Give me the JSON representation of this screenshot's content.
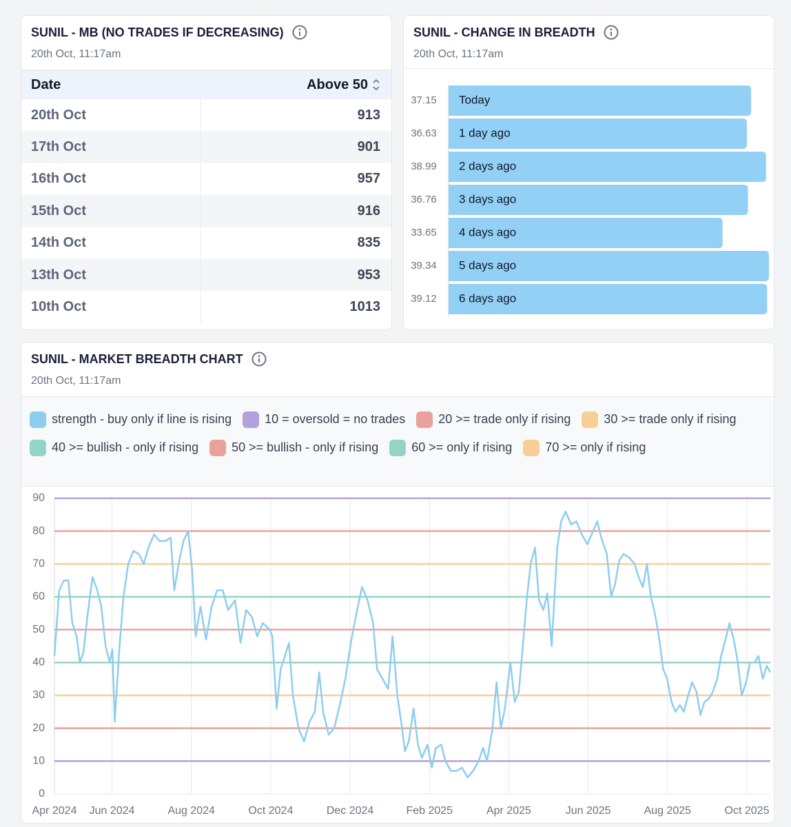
{
  "mb_table": {
    "title": "SUNIL - MB (NO TRADES IF DECREASING)",
    "timestamp": "20th Oct, 11:17am",
    "columns": [
      "Date",
      "Above 50"
    ],
    "rows": [
      [
        "20th Oct",
        913
      ],
      [
        "17th Oct",
        901
      ],
      [
        "16th Oct",
        957
      ],
      [
        "15th Oct",
        916
      ],
      [
        "14th Oct",
        835
      ],
      [
        "13th Oct",
        953
      ],
      [
        "10th Oct",
        1013
      ]
    ]
  },
  "chart_data": [
    {
      "type": "bar",
      "orientation": "horizontal",
      "title": "SUNIL - CHANGE IN BREADTH",
      "subtitle": "20th Oct, 11:17am",
      "categories": [
        "Today",
        "1 day ago",
        "2 days ago",
        "3 days ago",
        "4 days ago",
        "5 days ago",
        "6 days ago"
      ],
      "values": [
        37.15,
        36.63,
        38.99,
        36.76,
        33.65,
        39.34,
        39.12
      ],
      "color": "#93d0f6"
    },
    {
      "type": "line",
      "title": "SUNIL - MARKET BREADTH CHART",
      "subtitle": "20th Oct, 11:17am",
      "x": [
        0.55,
        0.67,
        0.79,
        0.9,
        1.0,
        1.11,
        1.19,
        1.28,
        1.39,
        1.51,
        1.63,
        1.73,
        1.84,
        1.94,
        2.01,
        2.07,
        2.19,
        2.29,
        2.41,
        2.54,
        2.68,
        2.8,
        2.92,
        3.06,
        3.2,
        3.34,
        3.48,
        3.57,
        3.68,
        3.8,
        3.92,
        4.02,
        4.11,
        4.23,
        4.37,
        4.51,
        4.65,
        4.79,
        4.93,
        5.1,
        5.24,
        5.38,
        5.52,
        5.66,
        5.8,
        5.98,
        6.04,
        6.15,
        6.25,
        6.36,
        6.46,
        6.56,
        6.7,
        6.84,
        6.98,
        7.11,
        7.22,
        7.32,
        7.46,
        7.6,
        7.74,
        7.88,
        8.02,
        8.16,
        8.3,
        8.44,
        8.58,
        8.68,
        8.82,
        8.96,
        9.07,
        9.19,
        9.31,
        9.38,
        9.48,
        9.6,
        9.71,
        9.81,
        9.95,
        10.06,
        10.16,
        10.3,
        10.4,
        10.54,
        10.68,
        10.82,
        10.96,
        11.1,
        11.24,
        11.35,
        11.45,
        11.59,
        11.69,
        11.8,
        11.9,
        12.04,
        12.15,
        12.25,
        12.36,
        12.46,
        12.55,
        12.66,
        12.76,
        12.87,
        12.97,
        13.08,
        13.15,
        13.22,
        13.32,
        13.43,
        13.57,
        13.7,
        13.84,
        13.98,
        14.12,
        14.23,
        14.33,
        14.47,
        14.58,
        14.68,
        14.78,
        14.89,
        15.03,
        15.17,
        15.27,
        15.38,
        15.48,
        15.58,
        15.68,
        15.78,
        15.89,
        15.99,
        16.1,
        16.2,
        16.31,
        16.41,
        16.52,
        16.62,
        16.73,
        16.83,
        16.93,
        17.04,
        17.14,
        17.25,
        17.35,
        17.46,
        17.56,
        17.67,
        17.77,
        17.87,
        17.98,
        18.08,
        18.19,
        18.29,
        18.4,
        18.5,
        18.59
      ],
      "series": [
        {
          "name": "strength - buy only if line is rising",
          "color": "#8dcdf0",
          "values": [
            42,
            62,
            65,
            65,
            52,
            48,
            40,
            43,
            55,
            66,
            62,
            57,
            45,
            40,
            44,
            22,
            45,
            60,
            70,
            74,
            73,
            70,
            75,
            79,
            77,
            77,
            78,
            62,
            70,
            77,
            80,
            68,
            48,
            57,
            47,
            57,
            62,
            62,
            56,
            59,
            46,
            56,
            54,
            48,
            52,
            50,
            48,
            26,
            38,
            42,
            46,
            30,
            20,
            16,
            22,
            25,
            37,
            25,
            18,
            20,
            27,
            35,
            46,
            55,
            63,
            59,
            52,
            38,
            35,
            32,
            48,
            30,
            20,
            13,
            16,
            26,
            15,
            11,
            15,
            8,
            14,
            15,
            10,
            7,
            7,
            8,
            5,
            7,
            10,
            14,
            10,
            20,
            34,
            20,
            26,
            40,
            28,
            31,
            46,
            60,
            70,
            75,
            59,
            56,
            61,
            45,
            60,
            75,
            83,
            86,
            82,
            83,
            79,
            76,
            80,
            83,
            78,
            73,
            60,
            64,
            71,
            73,
            72,
            70,
            66,
            63,
            70,
            60,
            55,
            48,
            38,
            35,
            28,
            25,
            27,
            25,
            30,
            34,
            31,
            24,
            28,
            29,
            31,
            35,
            42,
            47,
            52,
            47,
            40,
            30,
            34,
            40,
            40,
            42,
            35,
            39,
            37
          ]
        }
      ],
      "reference_lines": [
        {
          "name": "10 = oversold = no trades",
          "value": 10,
          "color": "#b3a0dc"
        },
        {
          "name": "20 >= trade only if rising",
          "value": 20,
          "color": "#e8a29b"
        },
        {
          "name": "30 >= trade only if rising",
          "value": 30,
          "color": "#f8d097"
        },
        {
          "name": "40 >= bullish - only if rising",
          "value": 40,
          "color": "#94d3c8"
        },
        {
          "name": "50 >= bullish - only if rising",
          "value": 50,
          "color": "#e8a29b"
        },
        {
          "name": "60 >= only if rising",
          "value": 60,
          "color": "#94d3c8"
        },
        {
          "name": "70 >= only if rising",
          "value": 70,
          "color": "#f8d097"
        },
        {
          "value": 80,
          "color": "#e8a29b"
        },
        {
          "value": 90,
          "color": "#b3a0dc"
        }
      ],
      "xlim": [
        0.55,
        18.59
      ],
      "xticks": [
        {
          "value": 0.55,
          "label": "Apr 2024"
        },
        {
          "value": 2,
          "label": "Jun 2024"
        },
        {
          "value": 4,
          "label": "Aug 2024"
        },
        {
          "value": 6,
          "label": "Oct 2024"
        },
        {
          "value": 8,
          "label": "Dec 2024"
        },
        {
          "value": 10,
          "label": "Feb 2025"
        },
        {
          "value": 12,
          "label": "Apr 2025"
        },
        {
          "value": 14,
          "label": "Jun 2025"
        },
        {
          "value": 16,
          "label": "Aug 2025"
        },
        {
          "value": 18,
          "label": "Oct 2025"
        }
      ],
      "ylim": [
        0,
        90
      ],
      "yticks": [
        0,
        10,
        20,
        30,
        40,
        50,
        60,
        70,
        80,
        90
      ],
      "grid": true
    }
  ]
}
